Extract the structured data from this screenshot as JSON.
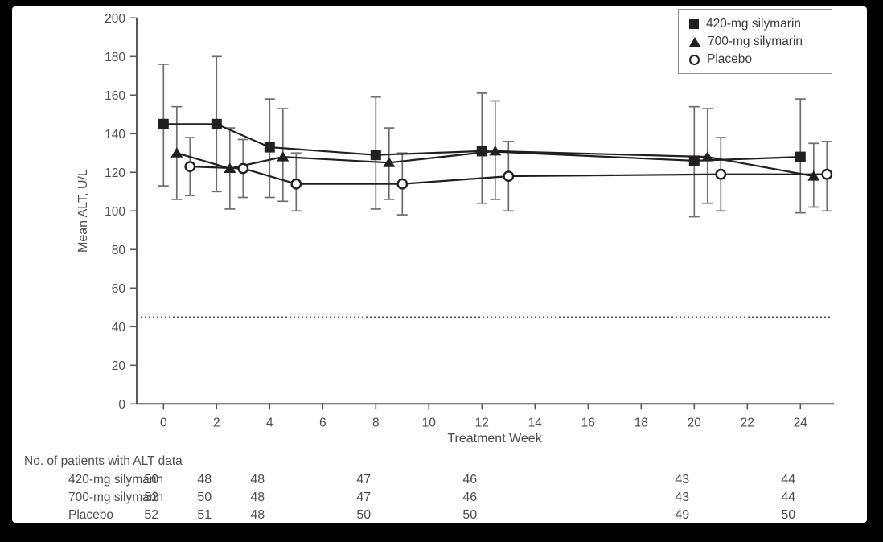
{
  "chart_data": {
    "type": "line",
    "xlabel": "Treatment Week",
    "ylabel": "Mean ALT, U/L",
    "ylim": [
      0,
      200
    ],
    "y_ticks": [
      0,
      20,
      40,
      60,
      80,
      100,
      120,
      140,
      160,
      180,
      200
    ],
    "x_ticks": [
      0,
      2,
      4,
      6,
      8,
      10,
      12,
      14,
      16,
      18,
      20,
      22,
      24
    ],
    "grid": "off",
    "legend_position": "top-right",
    "reference_line": {
      "y": 45,
      "style": "dotted"
    },
    "error_bars": "yes, vertical with caps",
    "series": [
      {
        "name": "420-mg silymarin",
        "marker": "filled-square",
        "week_offset": 0,
        "weeks": [
          0,
          2,
          4,
          8,
          12,
          20,
          24
        ],
        "means": [
          145,
          145,
          133,
          129,
          131,
          126,
          128
        ],
        "err_low": [
          113,
          110,
          107,
          101,
          104,
          97,
          99
        ],
        "err_high": [
          176,
          180,
          158,
          159,
          161,
          154,
          158
        ]
      },
      {
        "name": "700-mg silymarin",
        "marker": "filled-triangle",
        "week_offset": 0.5,
        "weeks": [
          0,
          2,
          4,
          8,
          12,
          20,
          24
        ],
        "means": [
          130,
          122,
          128,
          125,
          131,
          128,
          118
        ],
        "err_low": [
          106,
          101,
          105,
          106,
          106,
          104,
          102
        ],
        "err_high": [
          154,
          143,
          153,
          143,
          157,
          153,
          135
        ]
      },
      {
        "name": "Placebo",
        "marker": "open-circle",
        "week_offset": 1,
        "weeks": [
          0,
          2,
          4,
          8,
          12,
          20,
          24
        ],
        "means": [
          123,
          122,
          114,
          114,
          118,
          119,
          119
        ],
        "err_low": [
          108,
          107,
          100,
          98,
          100,
          100,
          100
        ],
        "err_high": [
          138,
          137,
          130,
          130,
          136,
          138,
          136
        ]
      }
    ],
    "patients_table": {
      "title": "No. of patients with ALT data",
      "weeks": [
        0,
        2,
        4,
        8,
        12,
        20,
        24
      ],
      "rows": [
        {
          "label": "420-mg silymarin",
          "values": [
            50,
            48,
            48,
            47,
            46,
            43,
            44
          ]
        },
        {
          "label": "700-mg silymarin",
          "values": [
            52,
            50,
            48,
            47,
            46,
            43,
            44
          ]
        },
        {
          "label": "Placebo",
          "values": [
            52,
            51,
            48,
            50,
            50,
            49,
            50
          ]
        }
      ]
    },
    "colors": {
      "marker": "#231f20",
      "line": "#231f20",
      "error_bar": "#6d6e71",
      "axis": "#58595b",
      "text": "#4d4d4d",
      "background": "#ffffff",
      "frame_border": "#000000"
    }
  }
}
